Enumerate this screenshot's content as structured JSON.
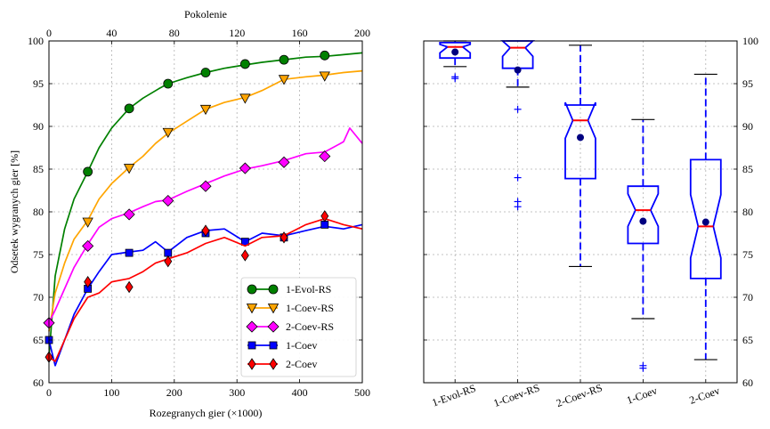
{
  "chart_data": [
    {
      "type": "line",
      "xlabel": "Rozegranych gier (×1000)",
      "xlabel_top": "Pokolenie",
      "ylabel": "Odsetek wygranych gier [%]",
      "xlim": [
        0,
        500
      ],
      "xlim_top": [
        0,
        200
      ],
      "ylim": [
        60,
        100
      ],
      "xticks": [
        0,
        100,
        200,
        300,
        400,
        500
      ],
      "xticks_top": [
        0,
        40,
        80,
        120,
        160,
        200
      ],
      "yticks": [
        60,
        65,
        70,
        75,
        80,
        85,
        90,
        95,
        100
      ],
      "grid": true,
      "legend_position": "lower-right",
      "series": [
        {
          "name": "1-Evol-RS",
          "color": "#008000",
          "marker": "circle",
          "marker_fill": "#008000",
          "x": [
            0,
            10,
            25,
            40,
            62,
            80,
            100,
            128,
            150,
            175,
            190,
            220,
            250,
            280,
            313,
            340,
            375,
            410,
            440,
            470,
            500
          ],
          "y": [
            63,
            72.5,
            78,
            81.5,
            84.7,
            87.5,
            89.8,
            92.1,
            93.3,
            94.4,
            95.0,
            95.7,
            96.3,
            96.8,
            97.2,
            97.5,
            97.8,
            98.1,
            98.2,
            98.4,
            98.6
          ],
          "markers_x": [
            62,
            128,
            190,
            250,
            313,
            375,
            440
          ],
          "markers_y": [
            84.7,
            92.1,
            95.0,
            96.3,
            97.3,
            97.8,
            98.3
          ]
        },
        {
          "name": "1-Coev-RS",
          "color": "#FFA500",
          "marker": "triangle-down",
          "marker_fill": "#FFA500",
          "x": [
            0,
            10,
            25,
            40,
            62,
            80,
            100,
            128,
            150,
            170,
            190,
            220,
            250,
            280,
            313,
            340,
            375,
            410,
            440,
            470,
            500
          ],
          "y": [
            66,
            70.5,
            74,
            76.8,
            79,
            81.5,
            83.3,
            85.2,
            86.5,
            88,
            89.2,
            90.6,
            92.0,
            92.8,
            93.4,
            94.2,
            95.5,
            95.8,
            96.0,
            96.3,
            96.5
          ],
          "markers_x": [
            62,
            128,
            190,
            250,
            313,
            375,
            440
          ],
          "markers_y": [
            78.8,
            85.1,
            89.3,
            92.0,
            93.3,
            95.5,
            95.9
          ]
        },
        {
          "name": "2-Coev-RS",
          "color": "#FF00FF",
          "marker": "diamond",
          "marker_fill": "#FF00FF",
          "x": [
            0,
            10,
            25,
            40,
            62,
            80,
            100,
            128,
            150,
            170,
            190,
            220,
            250,
            280,
            313,
            340,
            375,
            410,
            440,
            470,
            480,
            500
          ],
          "y": [
            67,
            68.5,
            71,
            73.5,
            76.2,
            78.2,
            79.2,
            79.9,
            80.6,
            81.2,
            81.4,
            82.4,
            83.3,
            84.2,
            85.0,
            85.4,
            86.0,
            86.8,
            87.0,
            88.2,
            89.8,
            88.0
          ],
          "markers_x": [
            0,
            62,
            128,
            190,
            250,
            313,
            375,
            440
          ],
          "markers_y": [
            67.0,
            76.0,
            79.7,
            81.3,
            83.0,
            85.1,
            85.8,
            86.5
          ]
        },
        {
          "name": "1-Coev",
          "color": "#0000FF",
          "marker": "square",
          "marker_fill": "#0000FF",
          "x": [
            0,
            10,
            25,
            40,
            62,
            80,
            100,
            128,
            150,
            170,
            190,
            220,
            250,
            280,
            313,
            340,
            375,
            410,
            440,
            470,
            500
          ],
          "y": [
            65,
            62,
            65,
            68,
            71,
            73,
            75,
            75.3,
            75.5,
            76.5,
            75.3,
            77,
            77.8,
            78,
            76.5,
            77.5,
            77.2,
            77.8,
            78.3,
            78.0,
            78.5
          ],
          "markers_x": [
            0,
            62,
            128,
            190,
            250,
            313,
            375,
            440
          ],
          "markers_y": [
            65.0,
            71.0,
            75.2,
            75.2,
            77.5,
            76.5,
            77.0,
            78.5
          ]
        },
        {
          "name": "2-Coev",
          "color": "#FF0000",
          "marker": "diamond-thin",
          "marker_fill": "#FF0000",
          "x": [
            0,
            10,
            25,
            40,
            62,
            80,
            100,
            128,
            150,
            170,
            190,
            220,
            250,
            280,
            313,
            340,
            375,
            410,
            440,
            470,
            500
          ],
          "y": [
            63,
            62.5,
            65,
            67.5,
            70,
            70.5,
            71.8,
            72.2,
            73,
            74,
            74.5,
            75.2,
            76.3,
            77,
            76.0,
            77.0,
            77.2,
            78.5,
            79.2,
            78.5,
            78.0
          ],
          "markers_x": [
            0,
            62,
            128,
            190,
            250,
            313,
            375,
            440
          ],
          "markers_y": [
            63.0,
            71.8,
            71.2,
            74.2,
            77.8,
            74.9,
            77.0,
            79.5
          ]
        }
      ]
    },
    {
      "type": "box",
      "ylim": [
        60,
        100
      ],
      "yticks": [
        60,
        65,
        70,
        75,
        80,
        85,
        90,
        95,
        100
      ],
      "grid": true,
      "categories": [
        "1-Evol-RS",
        "1-Coev-RS",
        "2-Coev-RS",
        "1-Coev",
        "2-Coev"
      ],
      "boxes": [
        {
          "q1": 98.0,
          "median": 99.3,
          "q3": 99.8,
          "whisker_low": 97.0,
          "whisker_high": 100.0,
          "mean": 98.7,
          "notch_low": 98.6,
          "notch_high": 99.6,
          "outliers": [
            95.6,
            95.8
          ]
        },
        {
          "q1": 96.8,
          "median": 99.2,
          "q3": 100.0,
          "whisker_low": 94.6,
          "whisker_high": 100.0,
          "mean": 96.6,
          "notch_low": 98.2,
          "notch_high": 100.0,
          "outliers": [
            92.0,
            84.0,
            81.2,
            80.6
          ]
        },
        {
          "q1": 83.9,
          "median": 90.7,
          "q3": 92.5,
          "whisker_low": 73.6,
          "whisker_high": 99.5,
          "mean": 88.7,
          "notch_low": 88.6,
          "notch_high": 92.8,
          "outliers": []
        },
        {
          "q1": 76.3,
          "median": 80.2,
          "q3": 83.0,
          "whisker_low": 67.5,
          "whisker_high": 90.8,
          "mean": 78.9,
          "notch_low": 78.3,
          "notch_high": 82.1,
          "outliers": [
            62.0,
            61.7
          ]
        },
        {
          "q1": 72.2,
          "median": 78.3,
          "q3": 86.1,
          "whisker_low": 62.7,
          "whisker_high": 96.1,
          "mean": 78.8,
          "notch_low": 74.6,
          "notch_high": 82.0,
          "outliers": []
        }
      ]
    }
  ]
}
